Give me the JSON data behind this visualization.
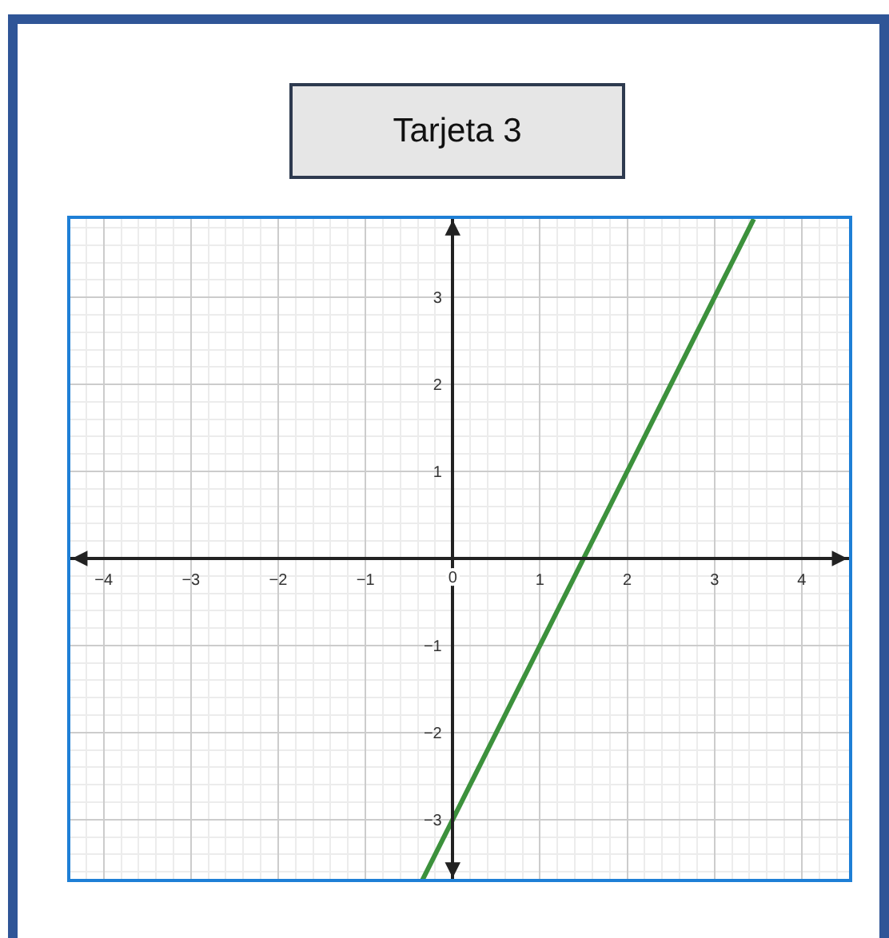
{
  "chart_data": {
    "type": "line",
    "title": "Tarjeta 3",
    "series": [
      {
        "color": "#3c913c",
        "x": [
          -0.35,
          3.45
        ],
        "values": [
          -3.7,
          3.9
        ]
      }
    ],
    "xlim": [
      -4.4,
      4.56
    ],
    "ylim": [
      -3.7,
      3.92
    ],
    "xticks": [
      -4,
      -3,
      -2,
      -1,
      0,
      1,
      2,
      3,
      4
    ],
    "yticks": [
      -3,
      -2,
      -1,
      1,
      2,
      3
    ],
    "grid": true
  }
}
